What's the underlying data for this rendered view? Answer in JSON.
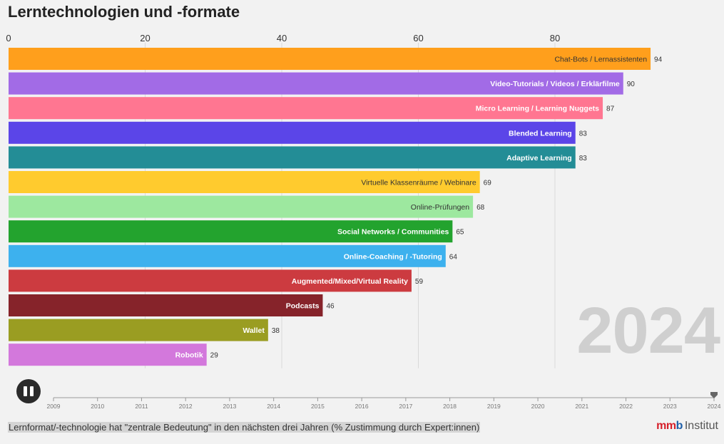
{
  "title": "Lerntechnologien und -formate",
  "caption": "Lernformat/-technologie hat \"zentrale Bedeutung\" in den nächsten drei Jahren (% Zustimmung durch Expert:innen)",
  "year": "2024",
  "logo": {
    "mark_left": "mm",
    "mark_right": "b",
    "text": "Institut"
  },
  "timeline": {
    "years": [
      "2009",
      "2010",
      "2011",
      "2012",
      "2013",
      "2014",
      "2015",
      "2016",
      "2017",
      "2018",
      "2019",
      "2020",
      "2021",
      "2022",
      "2023",
      "2024"
    ],
    "current": "2024"
  },
  "chart_data": {
    "type": "bar",
    "orientation": "horizontal",
    "title": "Lerntechnologien und -formate",
    "xlim": [
      0,
      100
    ],
    "xticks": [
      0,
      20,
      40,
      60,
      80
    ],
    "grid": true,
    "categories": [
      "Chat-Bots / Lernassistenten",
      "Video-Tutorials / Videos / Erklärfilme",
      "Micro Learning / Learning Nuggets",
      "Blended Learning",
      "Adaptive Learning",
      "Virtuelle Klassenräume / Webinare",
      "Online-Prüfungen",
      "Social Networks / Communities",
      "Online-Coaching / -Tutoring",
      "Augmented/Mixed/Virtual Reality",
      "Podcasts",
      "Wallet",
      "Robotik"
    ],
    "values": [
      94,
      90,
      87,
      83,
      83,
      69,
      68,
      65,
      64,
      59,
      46,
      38,
      29
    ],
    "colors": [
      "#ff9f1c",
      "#a26be6",
      "#ff7691",
      "#5b45e8",
      "#238d96",
      "#ffcb2e",
      "#9de89f",
      "#23a32e",
      "#3db1ee",
      "#cc3b40",
      "#86232a",
      "#9a9d22",
      "#d378dc"
    ],
    "label_colors": [
      "#333333",
      "#ffffff",
      "#ffffff",
      "#ffffff",
      "#ffffff",
      "#333333",
      "#333333",
      "#ffffff",
      "#ffffff",
      "#ffffff",
      "#ffffff",
      "#ffffff",
      "#ffffff"
    ]
  }
}
